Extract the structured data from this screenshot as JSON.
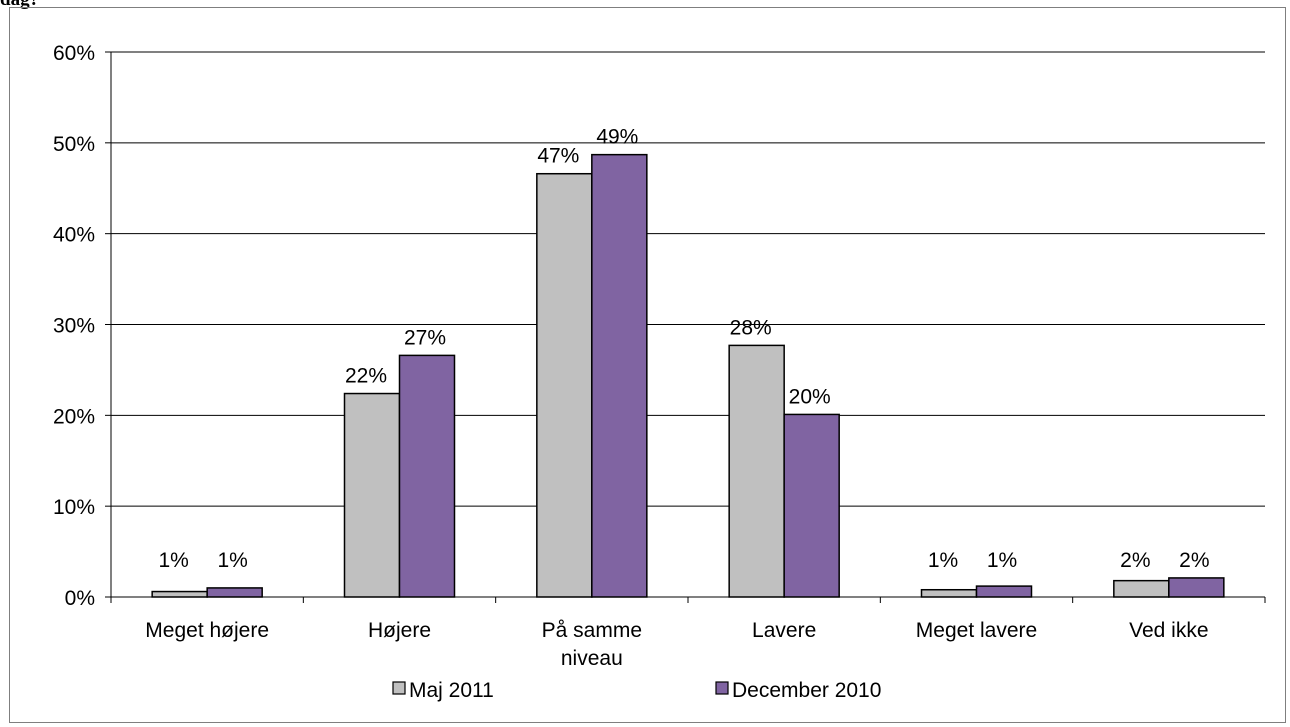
{
  "header_cut_text": "dag?",
  "chart_data": {
    "type": "bar",
    "categories": [
      "Meget højere",
      "Højere",
      "På samme niveau",
      "Lavere",
      "Meget lavere",
      "Ved ikke"
    ],
    "category_label_lines": [
      [
        "Meget højere"
      ],
      [
        "Højere"
      ],
      [
        "På samme",
        "niveau"
      ],
      [
        "Lavere"
      ],
      [
        "Meget lavere"
      ],
      [
        "Ved ikke"
      ]
    ],
    "series": [
      {
        "name": "Maj 2011",
        "color": "#c0c0c0",
        "values": [
          0.6,
          22.4,
          46.6,
          27.7,
          0.8,
          1.8
        ],
        "labels": [
          "1%",
          "22%",
          "47%",
          "28%",
          "1%",
          "2%"
        ]
      },
      {
        "name": "December 2010",
        "color": "#8064a2",
        "values": [
          1.0,
          26.6,
          48.7,
          20.1,
          1.2,
          2.1
        ],
        "labels": [
          "1%",
          "27%",
          "49%",
          "20%",
          "1%",
          "2%"
        ]
      }
    ],
    "ylim": [
      0,
      60
    ],
    "yticks": [
      "0%",
      "10%",
      "20%",
      "30%",
      "40%",
      "50%",
      "60%"
    ],
    "grid": true,
    "legend_position": "bottom",
    "title": "",
    "xlabel": "",
    "ylabel": ""
  }
}
